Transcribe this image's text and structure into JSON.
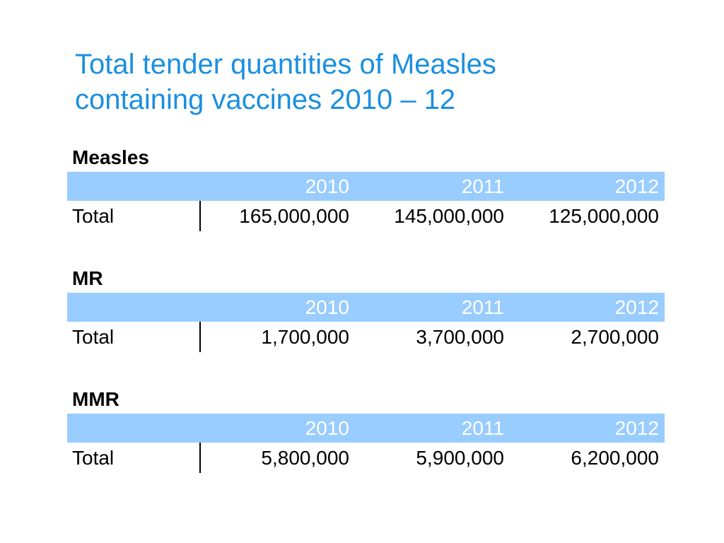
{
  "title": {
    "line1": "Total tender quantities of Measles",
    "line2": "containing vaccines 2010 – 12"
  },
  "sections": [
    {
      "heading": "Measles",
      "years": [
        "2010",
        "2011",
        "2012"
      ],
      "row_label": "Total",
      "values": [
        "165,000,000",
        "145,000,000",
        "125,000,000"
      ]
    },
    {
      "heading": "MR",
      "years": [
        "2010",
        "2011",
        "2012"
      ],
      "row_label": "Total",
      "values": [
        "1,700,000",
        "3,700,000",
        "2,700,000"
      ]
    },
    {
      "heading": "MMR",
      "years": [
        "2010",
        "2011",
        "2012"
      ],
      "row_label": "Total",
      "values": [
        "5,800,000",
        "5,900,000",
        "6,200,000"
      ]
    }
  ],
  "colors": {
    "title": "#1a8fe0",
    "header_fill": "#99ccff",
    "header_text": "#ffffff"
  }
}
